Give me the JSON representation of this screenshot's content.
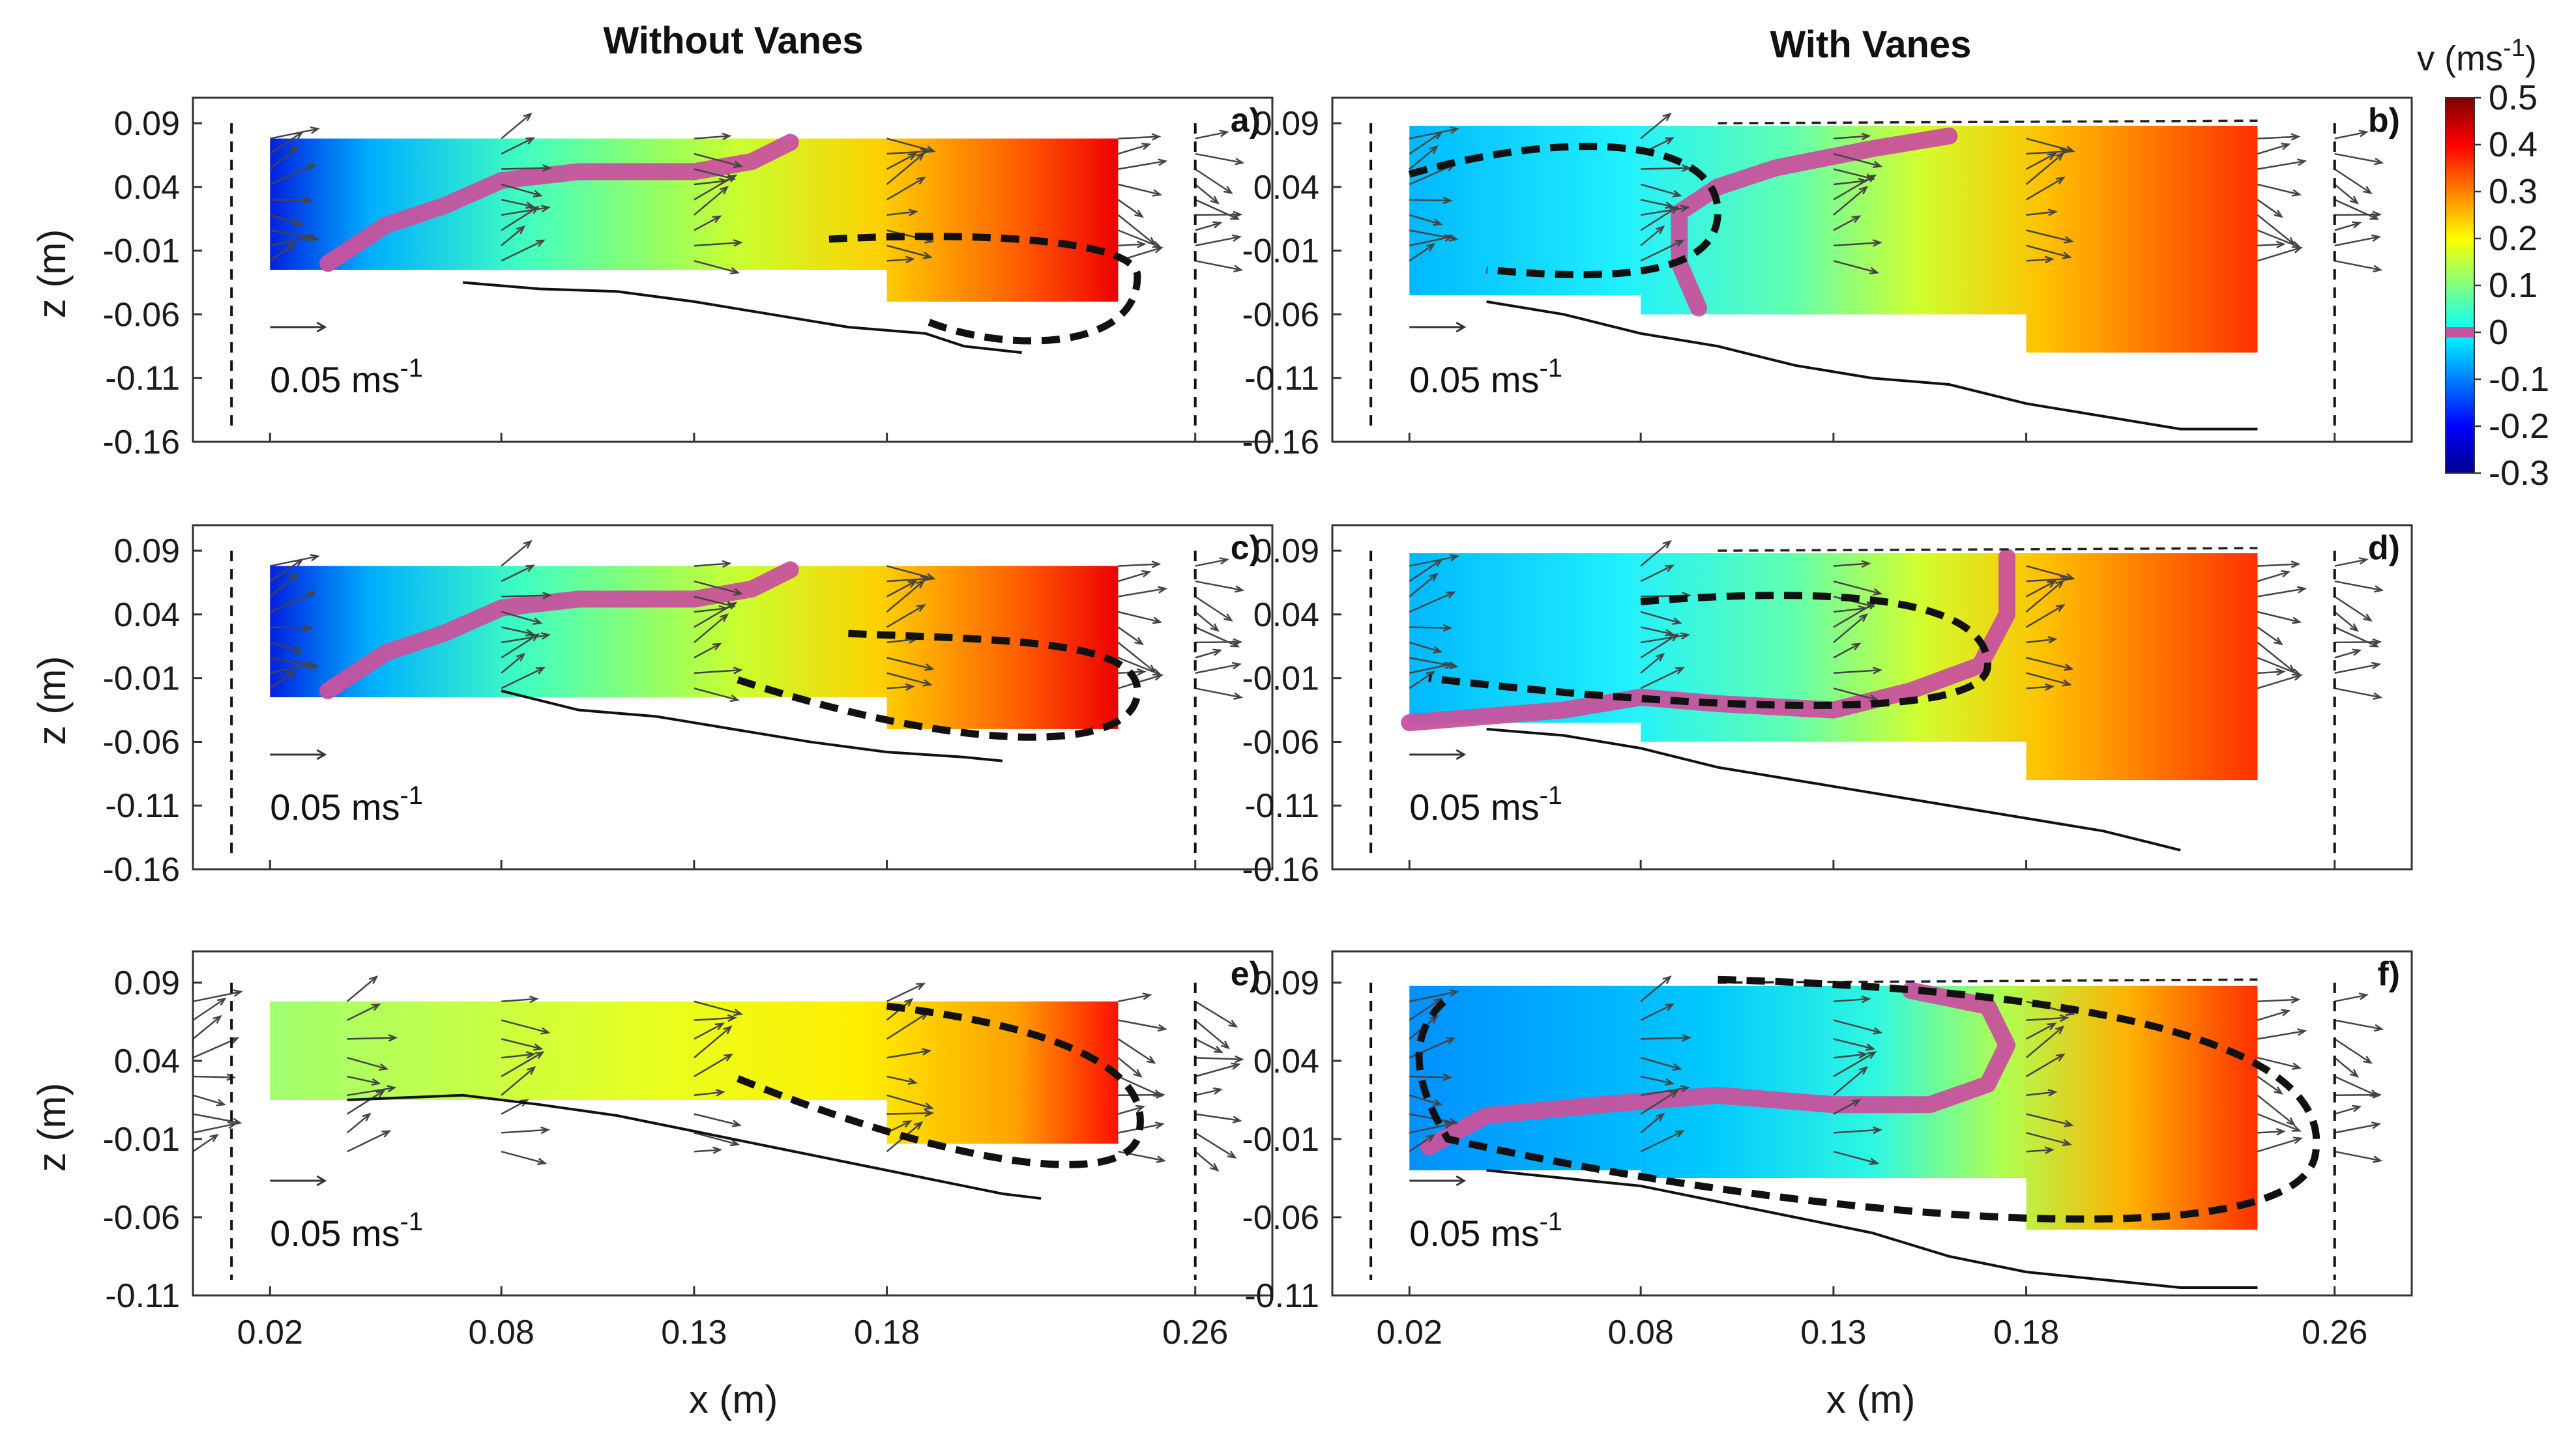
{
  "chart_data": {
    "type": "heatmap",
    "column_titles": [
      "Without Vanes",
      "With Vanes"
    ],
    "xlabel": "x (m)",
    "ylabel": "z (m)",
    "x_ticks": [
      "0.02",
      "0.08",
      "0.13",
      "0.18",
      "0.26"
    ],
    "x_tick_values": [
      0.02,
      0.08,
      0.13,
      0.18,
      0.26
    ],
    "scale_arrow_label": "0.05 ms",
    "scale_arrow_exp": "-1",
    "colorbar": {
      "label": "v (ms",
      "label_exp": "-1",
      "label_close": ")",
      "ticks": [
        "0.5",
        "0.4",
        "0.3",
        "0.2",
        "0.1",
        "0",
        "-0.1",
        "-0.2",
        "-0.3"
      ],
      "tick_values": [
        0.5,
        0.4,
        0.3,
        0.2,
        0.1,
        0.0,
        -0.1,
        -0.2,
        -0.3
      ],
      "range": [
        -0.3,
        0.5
      ],
      "colormap": "jet",
      "zero_color": "#c8529d"
    },
    "panels": [
      {
        "label": "a)",
        "column": "Without Vanes",
        "y_ticks": [
          "0.09",
          "0.04",
          "-0.01",
          "-0.06",
          "-0.11",
          "-0.16"
        ],
        "y_tick_values": [
          0.09,
          0.04,
          -0.01,
          -0.06,
          -0.11,
          -0.16
        ],
        "ylim": [
          -0.16,
          0.11
        ],
        "xlim": [
          0.0,
          0.28
        ],
        "field_v_range": [
          -0.3,
          0.5
        ]
      },
      {
        "label": "b)",
        "column": "With Vanes",
        "y_ticks": [
          "0.09",
          "0.04",
          "-0.01",
          "-0.06",
          "-0.11",
          "-0.16"
        ],
        "y_tick_values": [
          0.09,
          0.04,
          -0.01,
          -0.06,
          -0.11,
          -0.16
        ],
        "ylim": [
          -0.16,
          0.11
        ],
        "xlim": [
          0.0,
          0.28
        ],
        "field_v_range": [
          -0.05,
          0.45
        ]
      },
      {
        "label": "c)",
        "column": "Without Vanes",
        "y_ticks": [
          "0.09",
          "0.04",
          "-0.01",
          "-0.06",
          "-0.11",
          "-0.16"
        ],
        "y_tick_values": [
          0.09,
          0.04,
          -0.01,
          -0.06,
          -0.11,
          -0.16
        ],
        "ylim": [
          -0.16,
          0.11
        ],
        "xlim": [
          0.0,
          0.28
        ],
        "field_v_range": [
          -0.3,
          0.5
        ]
      },
      {
        "label": "d)",
        "column": "With Vanes",
        "y_ticks": [
          "0.09",
          "0.04",
          "-0.01",
          "-0.06",
          "-0.11",
          "-0.16"
        ],
        "y_tick_values": [
          0.09,
          0.04,
          -0.01,
          -0.06,
          -0.11,
          -0.16
        ],
        "ylim": [
          -0.16,
          0.11
        ],
        "xlim": [
          0.0,
          0.28
        ],
        "field_v_range": [
          -0.05,
          0.5
        ]
      },
      {
        "label": "e)",
        "column": "Without Vanes",
        "y_ticks": [
          "0.09",
          "0.04",
          "-0.01",
          "-0.06",
          "-0.11"
        ],
        "y_tick_values": [
          0.09,
          0.04,
          -0.01,
          -0.06,
          -0.11
        ],
        "ylim": [
          -0.11,
          0.11
        ],
        "xlim": [
          0.0,
          0.28
        ],
        "field_v_range": [
          0.1,
          0.5
        ]
      },
      {
        "label": "f)",
        "column": "With Vanes",
        "y_ticks": [
          "0.09",
          "0.04",
          "-0.01",
          "-0.06",
          "-0.11"
        ],
        "y_tick_values": [
          0.09,
          0.04,
          -0.01,
          -0.06,
          -0.11
        ],
        "ylim": [
          -0.11,
          0.11
        ],
        "xlim": [
          0.0,
          0.28
        ],
        "field_v_range": [
          -0.15,
          0.45
        ]
      }
    ]
  }
}
